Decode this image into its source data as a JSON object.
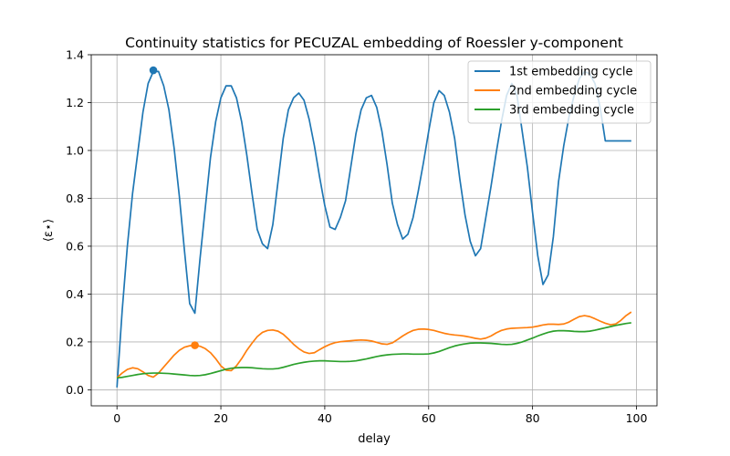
{
  "chart_data": {
    "type": "line",
    "title": "Continuity statistics for PECUZAL embedding of Roessler y-component",
    "xlabel": "delay",
    "ylabel": "⟨ε⋆⟩",
    "xlim": [
      -4.95,
      103.95
    ],
    "ylim": [
      -0.067,
      1.4
    ],
    "xticks": [
      0,
      20,
      40,
      60,
      80,
      100
    ],
    "yticks": [
      0.0,
      0.2,
      0.4,
      0.6,
      0.8,
      1.0,
      1.2,
      1.4
    ],
    "xtick_labels": [
      "0",
      "20",
      "40",
      "60",
      "80",
      "100"
    ],
    "ytick_labels": [
      "0.0",
      "0.2",
      "0.4",
      "0.6",
      "0.8",
      "1.0",
      "1.2",
      "1.4"
    ],
    "grid": true,
    "legend_position": "top-right",
    "series": [
      {
        "name": "1st embedding cycle",
        "color": "#1f77b4",
        "x": [
          0,
          1,
          2,
          3,
          4,
          5,
          6,
          7,
          8,
          9,
          10,
          11,
          12,
          13,
          14,
          15,
          16,
          17,
          18,
          19,
          20,
          21,
          22,
          23,
          24,
          25,
          26,
          27,
          28,
          29,
          30,
          31,
          32,
          33,
          34,
          35,
          36,
          37,
          38,
          39,
          40,
          41,
          42,
          43,
          44,
          45,
          46,
          47,
          48,
          49,
          50,
          51,
          52,
          53,
          54,
          55,
          56,
          57,
          58,
          59,
          60,
          61,
          62,
          63,
          64,
          65,
          66,
          67,
          68,
          69,
          70,
          71,
          72,
          73,
          74,
          75,
          76,
          77,
          78,
          79,
          80,
          81,
          82,
          83,
          84,
          85,
          86,
          87,
          88,
          89,
          90,
          91,
          92,
          93,
          94,
          95,
          96,
          97,
          98,
          99
        ],
        "values": [
          0.01,
          0.33,
          0.6,
          0.82,
          0.99,
          1.16,
          1.28,
          1.33,
          1.33,
          1.27,
          1.17,
          1.01,
          0.81,
          0.58,
          0.36,
          0.32,
          0.55,
          0.76,
          0.97,
          1.12,
          1.22,
          1.27,
          1.27,
          1.22,
          1.12,
          0.98,
          0.82,
          0.67,
          0.61,
          0.59,
          0.69,
          0.87,
          1.05,
          1.17,
          1.22,
          1.24,
          1.21,
          1.13,
          1.02,
          0.89,
          0.77,
          0.68,
          0.67,
          0.72,
          0.79,
          0.93,
          1.07,
          1.17,
          1.22,
          1.23,
          1.18,
          1.08,
          0.94,
          0.78,
          0.69,
          0.63,
          0.65,
          0.72,
          0.83,
          0.95,
          1.08,
          1.2,
          1.25,
          1.23,
          1.16,
          1.05,
          0.88,
          0.73,
          0.62,
          0.56,
          0.59,
          0.72,
          0.85,
          0.99,
          1.12,
          1.23,
          1.28,
          1.23,
          1.08,
          0.93,
          0.74,
          0.56,
          0.44,
          0.48,
          0.64,
          0.87,
          1.02,
          1.14,
          1.23,
          1.3,
          1.33,
          1.32,
          1.28,
          1.18,
          1.04,
          1.04,
          1.04,
          1.04,
          1.04,
          1.04
        ]
      },
      {
        "name": "2nd embedding cycle",
        "color": "#ff7f0e",
        "x": [
          0,
          1,
          2,
          3,
          4,
          5,
          6,
          7,
          8,
          9,
          10,
          11,
          12,
          13,
          14,
          15,
          16,
          17,
          18,
          19,
          20,
          21,
          22,
          23,
          24,
          25,
          26,
          27,
          28,
          29,
          30,
          31,
          32,
          33,
          34,
          35,
          36,
          37,
          38,
          39,
          40,
          41,
          42,
          43,
          44,
          45,
          46,
          47,
          48,
          49,
          50,
          51,
          52,
          53,
          54,
          55,
          56,
          57,
          58,
          59,
          60,
          61,
          62,
          63,
          64,
          65,
          66,
          67,
          68,
          69,
          70,
          71,
          72,
          73,
          74,
          75,
          76,
          77,
          78,
          79,
          80,
          81,
          82,
          83,
          84,
          85,
          86,
          87,
          88,
          89,
          90,
          91,
          92,
          93,
          94,
          95,
          96,
          97,
          98,
          99
        ],
        "values": [
          0.05,
          0.07,
          0.085,
          0.092,
          0.088,
          0.075,
          0.06,
          0.053,
          0.07,
          0.095,
          0.12,
          0.145,
          0.165,
          0.178,
          0.184,
          0.186,
          0.182,
          0.172,
          0.155,
          0.13,
          0.1,
          0.082,
          0.08,
          0.1,
          0.13,
          0.165,
          0.195,
          0.222,
          0.24,
          0.248,
          0.25,
          0.245,
          0.232,
          0.212,
          0.19,
          0.172,
          0.158,
          0.152,
          0.155,
          0.168,
          0.18,
          0.19,
          0.197,
          0.201,
          0.203,
          0.205,
          0.207,
          0.208,
          0.207,
          0.204,
          0.198,
          0.192,
          0.19,
          0.196,
          0.21,
          0.225,
          0.238,
          0.248,
          0.253,
          0.254,
          0.252,
          0.248,
          0.242,
          0.236,
          0.232,
          0.229,
          0.227,
          0.224,
          0.22,
          0.215,
          0.212,
          0.216,
          0.225,
          0.238,
          0.248,
          0.254,
          0.257,
          0.258,
          0.259,
          0.26,
          0.262,
          0.266,
          0.271,
          0.274,
          0.274,
          0.273,
          0.275,
          0.283,
          0.295,
          0.306,
          0.31,
          0.306,
          0.297,
          0.287,
          0.278,
          0.272,
          0.275,
          0.29,
          0.31,
          0.325
        ]
      },
      {
        "name": "3rd embedding cycle",
        "color": "#2ca02c",
        "x": [
          0,
          1,
          2,
          3,
          4,
          5,
          6,
          7,
          8,
          9,
          10,
          11,
          12,
          13,
          14,
          15,
          16,
          17,
          18,
          19,
          20,
          21,
          22,
          23,
          24,
          25,
          26,
          27,
          28,
          29,
          30,
          31,
          32,
          33,
          34,
          35,
          36,
          37,
          38,
          39,
          40,
          41,
          42,
          43,
          44,
          45,
          46,
          47,
          48,
          49,
          50,
          51,
          52,
          53,
          54,
          55,
          56,
          57,
          58,
          59,
          60,
          61,
          62,
          63,
          64,
          65,
          66,
          67,
          68,
          69,
          70,
          71,
          72,
          73,
          74,
          75,
          76,
          77,
          78,
          79,
          80,
          81,
          82,
          83,
          84,
          85,
          86,
          87,
          88,
          89,
          90,
          91,
          92,
          93,
          94,
          95,
          96,
          97,
          98,
          99
        ],
        "values": [
          0.05,
          0.052,
          0.056,
          0.06,
          0.064,
          0.067,
          0.069,
          0.07,
          0.07,
          0.069,
          0.068,
          0.066,
          0.064,
          0.062,
          0.06,
          0.059,
          0.06,
          0.063,
          0.068,
          0.074,
          0.08,
          0.086,
          0.09,
          0.092,
          0.093,
          0.093,
          0.092,
          0.09,
          0.088,
          0.087,
          0.087,
          0.089,
          0.094,
          0.1,
          0.106,
          0.111,
          0.115,
          0.118,
          0.12,
          0.121,
          0.121,
          0.12,
          0.119,
          0.118,
          0.118,
          0.119,
          0.121,
          0.125,
          0.129,
          0.134,
          0.139,
          0.143,
          0.146,
          0.148,
          0.149,
          0.15,
          0.15,
          0.149,
          0.149,
          0.149,
          0.15,
          0.154,
          0.16,
          0.168,
          0.176,
          0.183,
          0.188,
          0.192,
          0.195,
          0.196,
          0.196,
          0.195,
          0.194,
          0.192,
          0.19,
          0.189,
          0.19,
          0.194,
          0.2,
          0.208,
          0.216,
          0.225,
          0.233,
          0.24,
          0.245,
          0.247,
          0.247,
          0.246,
          0.244,
          0.243,
          0.243,
          0.245,
          0.249,
          0.254,
          0.259,
          0.264,
          0.269,
          0.273,
          0.277,
          0.28
        ]
      }
    ],
    "markers": [
      {
        "series": "1st embedding cycle",
        "x": 7,
        "y": 1.335,
        "color": "#1f77b4"
      },
      {
        "series": "2nd embedding cycle",
        "x": 15,
        "y": 0.186,
        "color": "#ff7f0e"
      }
    ]
  }
}
